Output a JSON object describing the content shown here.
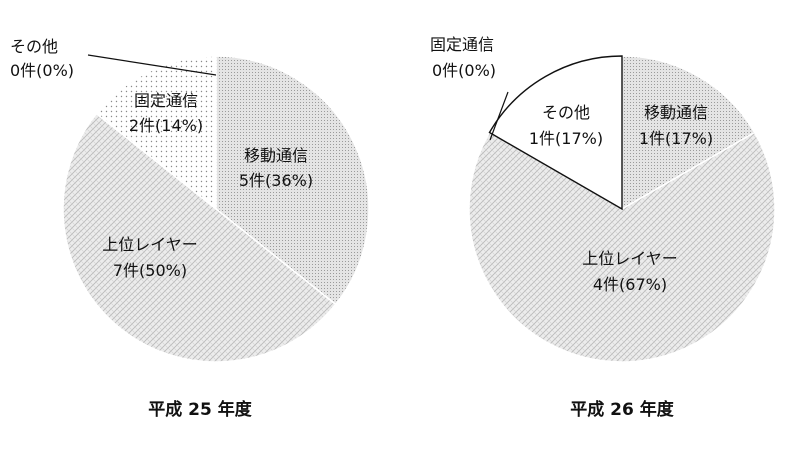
{
  "chart_data": [
    {
      "type": "pie",
      "title": "平成 25 年度",
      "slices": [
        {
          "name": "その他",
          "count": 0,
          "value_label": "0件(0%)",
          "percent": 0,
          "pattern": "dots-fine"
        },
        {
          "name": "移動通信",
          "count": 5,
          "value_label": "5件(36%)",
          "percent": 36,
          "pattern": "dots-dense"
        },
        {
          "name": "上位レイヤー",
          "count": 7,
          "value_label": "7件(50%)",
          "percent": 50,
          "pattern": "crosshatch"
        },
        {
          "name": "固定通信",
          "count": 2,
          "value_label": "2件(14%)",
          "percent": 14,
          "pattern": "dots-sparse"
        }
      ]
    },
    {
      "type": "pie",
      "title": "平成 26 年度",
      "slices": [
        {
          "name": "固定通信",
          "count": 0,
          "value_label": "0件(0%)",
          "percent": 0,
          "pattern": "dots-sparse"
        },
        {
          "name": "移動通信",
          "count": 1,
          "value_label": "1件(17%)",
          "percent": 17,
          "pattern": "dots-dense"
        },
        {
          "name": "上位レイヤー",
          "count": 4,
          "value_label": "4件(67%)",
          "percent": 67,
          "pattern": "crosshatch"
        },
        {
          "name": "その他",
          "count": 1,
          "value_label": "1件(17%)",
          "percent": 17,
          "pattern": "white"
        }
      ]
    }
  ]
}
